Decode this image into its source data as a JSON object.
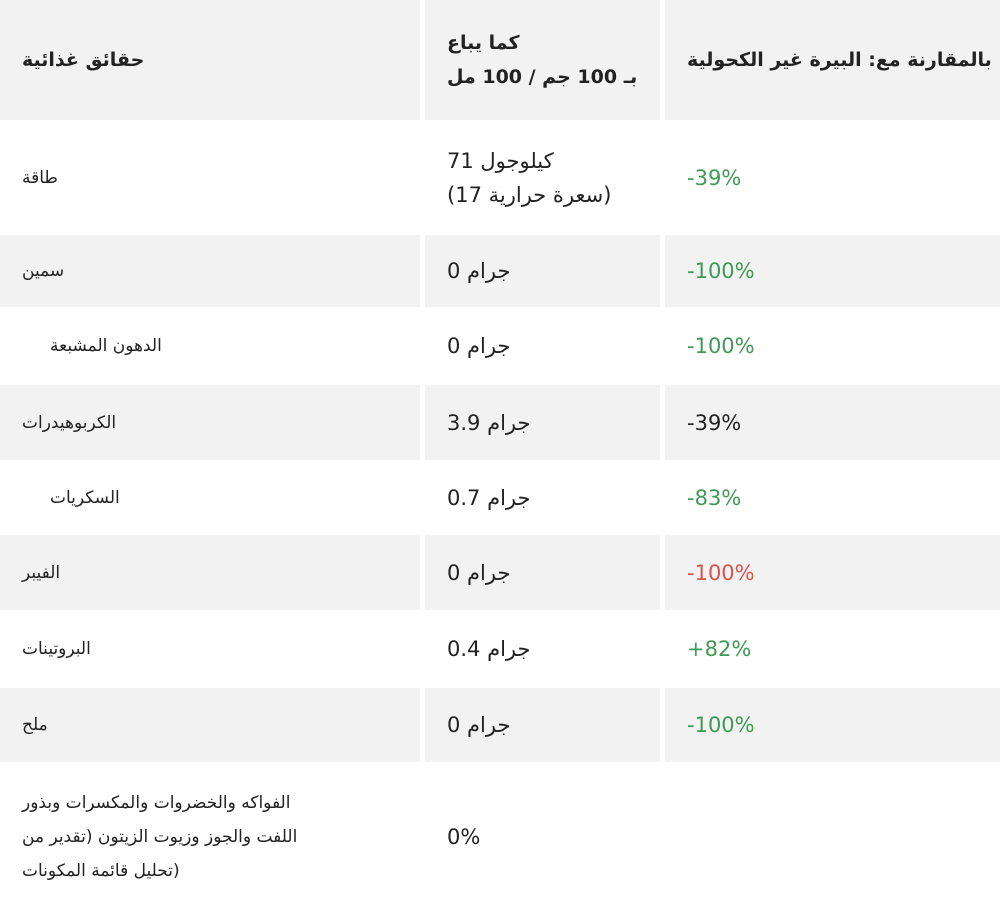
{
  "table": {
    "header": [
      [
        "حقائق غذائية"
      ],
      [
        "كما يباع",
        "بـ 100 جم / 100 مل"
      ],
      [
        "بالمقارنة مع: البيرة غير الكحولية"
      ]
    ],
    "rows": [
      {
        "fact": [
          "طاقة"
        ],
        "indent": false,
        "amount": [
          "كيلوجول 71",
          "(سعرة حرارية 17)"
        ],
        "comparison": "-39%",
        "comparison_color": "#3f9a55"
      },
      {
        "fact": [
          "سمين"
        ],
        "indent": false,
        "amount": [
          "جرام 0"
        ],
        "comparison": "-100%",
        "comparison_color": "#3f9a55"
      },
      {
        "fact": [
          "الدهون المشبعة"
        ],
        "indent": true,
        "amount": [
          "جرام 0"
        ],
        "comparison": "-100%",
        "comparison_color": "#3f9a55"
      },
      {
        "fact": [
          "الكربوهيدرات"
        ],
        "indent": false,
        "amount": [
          "جرام 3.9"
        ],
        "comparison": "-39%",
        "comparison_color": "#222222"
      },
      {
        "fact": [
          "السكريات"
        ],
        "indent": true,
        "amount": [
          "جرام 0.7"
        ],
        "comparison": "-83%",
        "comparison_color": "#3f9a55"
      },
      {
        "fact": [
          "الفيبر"
        ],
        "indent": false,
        "amount": [
          "جرام 0"
        ],
        "comparison": "-100%",
        "comparison_color": "#d9534f"
      },
      {
        "fact": [
          "البروتينات"
        ],
        "indent": false,
        "amount": [
          "جرام 0.4"
        ],
        "comparison": "+82%",
        "comparison_color": "#3f9a55"
      },
      {
        "fact": [
          "ملح"
        ],
        "indent": false,
        "amount": [
          "جرام 0"
        ],
        "comparison": "-100%",
        "comparison_color": "#3f9a55"
      },
      {
        "fact": [
          "الفواكه والخضروات والمكسرات وبذور",
          "اللفت والجوز وزيوت الزيتون (تقدير من",
          "تحليل قائمة المكونات)"
        ],
        "indent": false,
        "amount": [
          "0%"
        ],
        "comparison": null,
        "comparison_color": null
      }
    ]
  }
}
